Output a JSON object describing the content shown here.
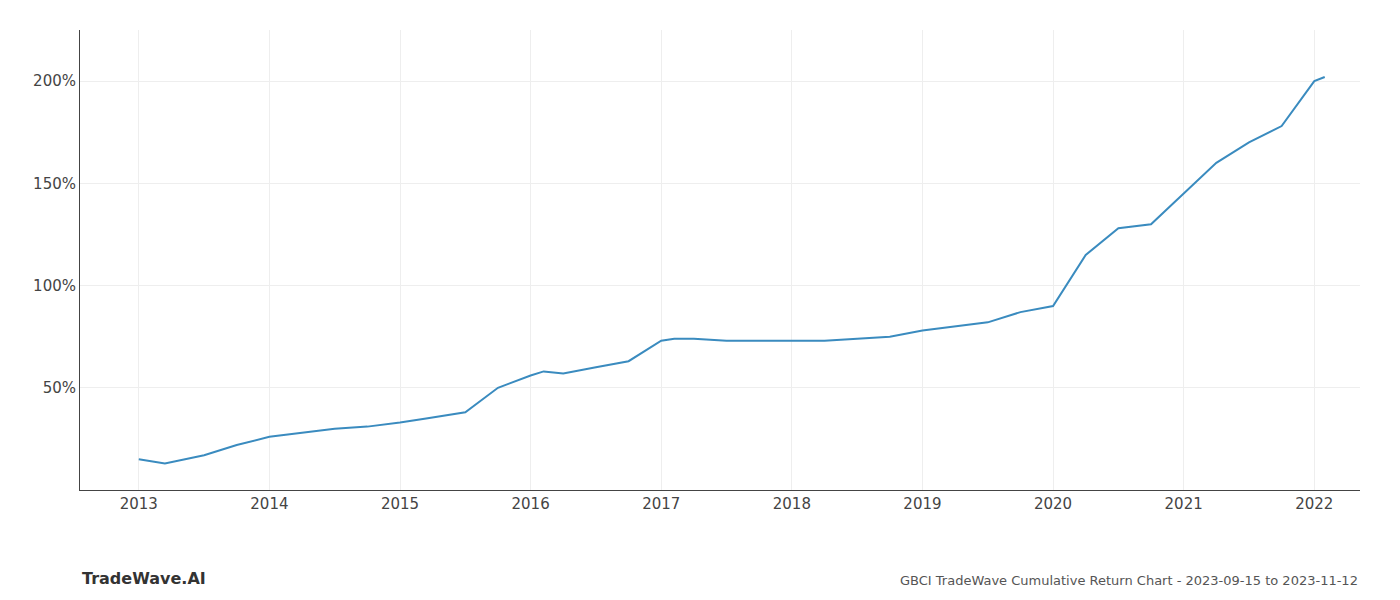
{
  "chart_data": {
    "type": "line",
    "title": "GBCI TradeWave Cumulative Return Chart - 2023-09-15 to 2023-11-12",
    "annotations": [
      "TradeWave.AI"
    ],
    "x": [
      2013.0,
      2013.2,
      2013.5,
      2013.75,
      2014.0,
      2014.25,
      2014.5,
      2014.75,
      2015.0,
      2015.2,
      2015.5,
      2015.75,
      2016.0,
      2016.1,
      2016.25,
      2016.5,
      2016.75,
      2017.0,
      2017.1,
      2017.25,
      2017.5,
      2017.75,
      2018.0,
      2018.25,
      2018.5,
      2018.75,
      2019.0,
      2019.25,
      2019.5,
      2019.75,
      2020.0,
      2020.25,
      2020.5,
      2020.75,
      2021.0,
      2021.25,
      2021.5,
      2021.75,
      2022.0,
      2022.08
    ],
    "values": [
      15,
      13,
      17,
      22,
      26,
      28,
      30,
      31,
      33,
      35,
      38,
      50,
      56,
      58,
      57,
      60,
      63,
      73,
      74,
      74,
      73,
      73,
      73,
      73,
      74,
      75,
      78,
      80,
      82,
      87,
      90,
      115,
      128,
      130,
      145,
      160,
      170,
      178,
      200,
      202
    ],
    "color": "#3a8bbf",
    "xlim": [
      2012.55,
      2022.35
    ],
    "xticks": [
      2013,
      2014,
      2015,
      2016,
      2017,
      2018,
      2019,
      2020,
      2021,
      2022
    ],
    "ylim": [
      0,
      225
    ],
    "yticks": [
      {
        "value": 50,
        "label": "50%"
      },
      {
        "value": 100,
        "label": "100%"
      },
      {
        "value": 150,
        "label": "150%"
      },
      {
        "value": 200,
        "label": "200%"
      }
    ],
    "grid": true
  }
}
